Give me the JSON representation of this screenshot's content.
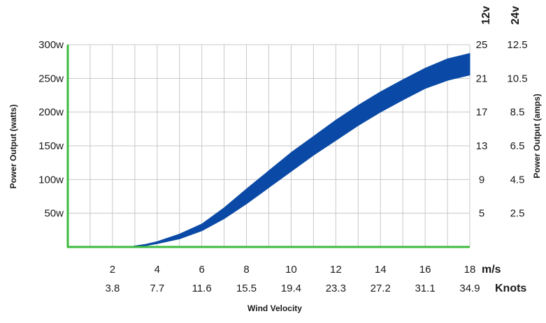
{
  "chart_data": {
    "type": "area",
    "title": "",
    "xlabel": "Wind Velocity",
    "ylabel": "Power Output (watts)",
    "y2label": "Power Output (amps)",
    "grid": true,
    "colors": {
      "band": "#0a4aa6",
      "axis": "#3dbb3d",
      "grid": "#c8c8c8"
    },
    "x_unit_ms": "m/s",
    "x_unit_knots": "Knots",
    "xlim": [
      0,
      18
    ],
    "ylim": [
      0,
      300
    ],
    "x_ticks_ms": [
      "2",
      "4",
      "6",
      "8",
      "10",
      "12",
      "14",
      "16",
      "18"
    ],
    "x_ticks_knots": [
      "3.8",
      "7.7",
      "11.6",
      "15.5",
      "19.4",
      "23.3",
      "27.2",
      "31.1",
      "34.9"
    ],
    "y_ticks": [
      "50w",
      "100w",
      "150w",
      "200w",
      "250w",
      "300w"
    ],
    "y2_12v_header": "12v",
    "y2_24v_header": "24v",
    "y2_12v_ticks": [
      "5",
      "9",
      "13",
      "17",
      "21",
      "25"
    ],
    "y2_24v_ticks": [
      "2.5",
      "4.5",
      "6.5",
      "8.5",
      "10.5",
      "12.5"
    ],
    "series": [
      {
        "x": [
          2.7,
          3.5,
          4,
          5,
          6,
          7,
          8,
          9,
          10,
          11,
          12,
          13,
          14,
          15,
          16,
          17,
          18
        ],
        "low": [
          0,
          2,
          5,
          12,
          24,
          42,
          64,
          88,
          112,
          136,
          158,
          180,
          200,
          218,
          235,
          247,
          255
        ],
        "high": [
          0,
          4,
          8,
          19,
          34,
          58,
          86,
          113,
          140,
          164,
          188,
          210,
          230,
          248,
          265,
          279,
          287
        ]
      }
    ]
  }
}
